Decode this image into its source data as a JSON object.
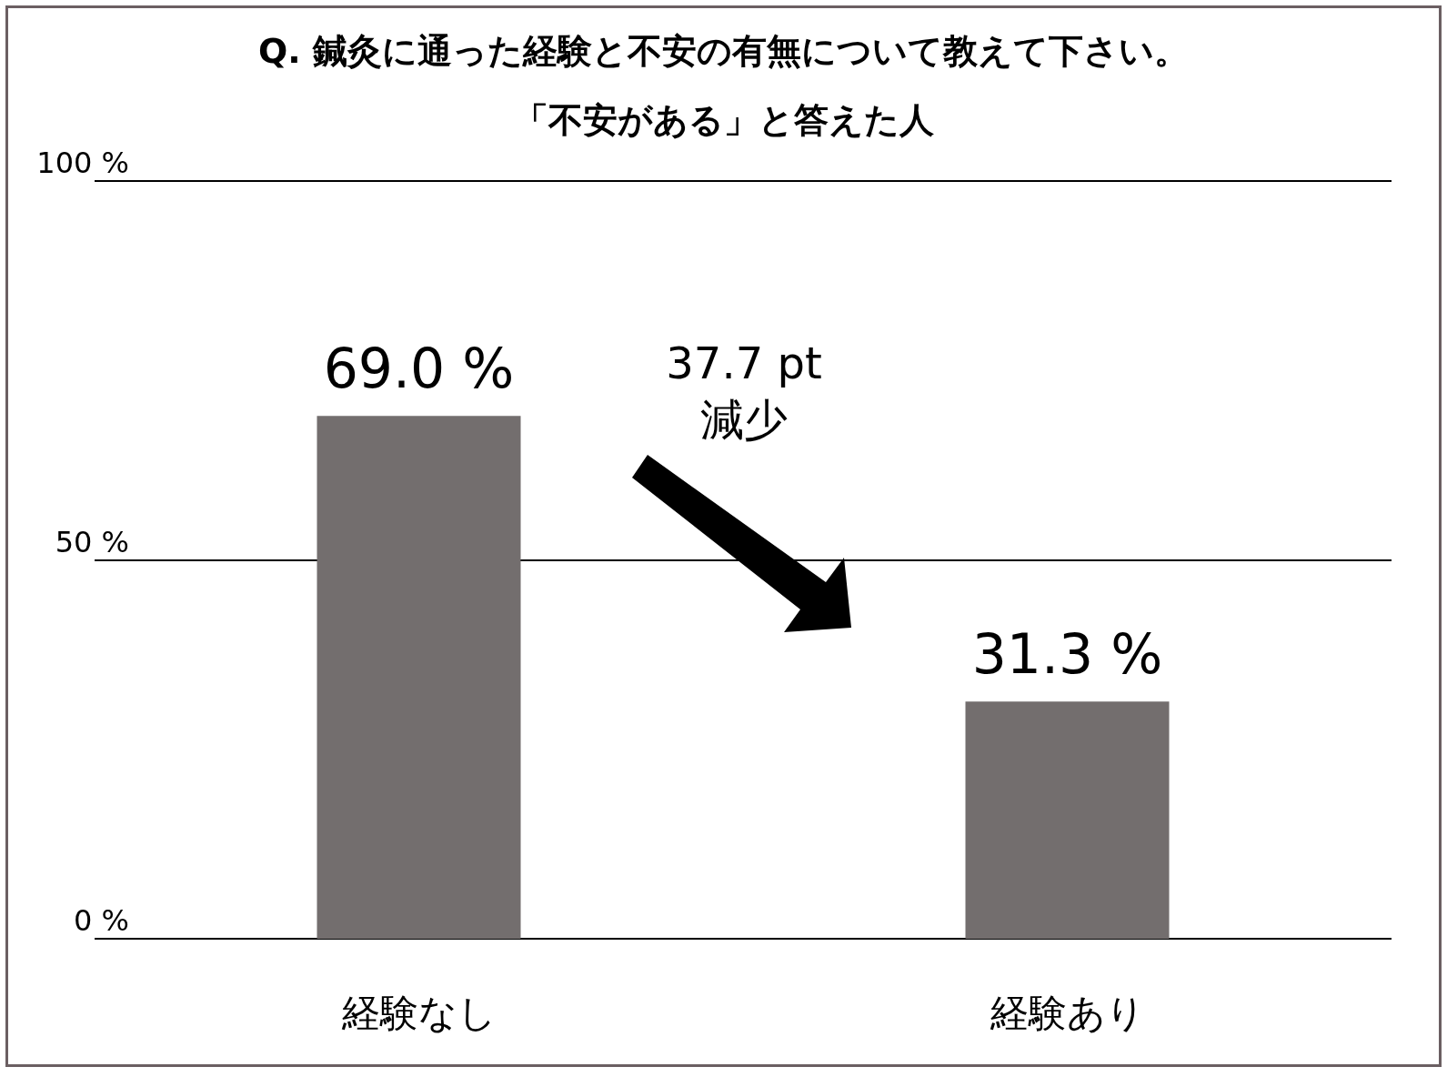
{
  "chart_data": {
    "type": "bar",
    "title": "Q. 鍼灸に通った経験と不安の有無について教えて下さい。",
    "subtitle": "「不安がある」と答えた人",
    "categories": [
      "経験なし",
      "経験あり"
    ],
    "values": [
      69.0,
      31.3
    ],
    "value_labels": [
      "69.0 %",
      "31.3 %"
    ],
    "color": "#736e6e",
    "ylim": [
      0,
      100
    ],
    "yticks": [
      {
        "value": 0,
        "label": "0 %"
      },
      {
        "value": 50,
        "label": "50 %"
      },
      {
        "value": 100,
        "label": "100 %"
      }
    ],
    "grid": "y",
    "annotations": [
      "37.7 pt\n減少"
    ]
  }
}
